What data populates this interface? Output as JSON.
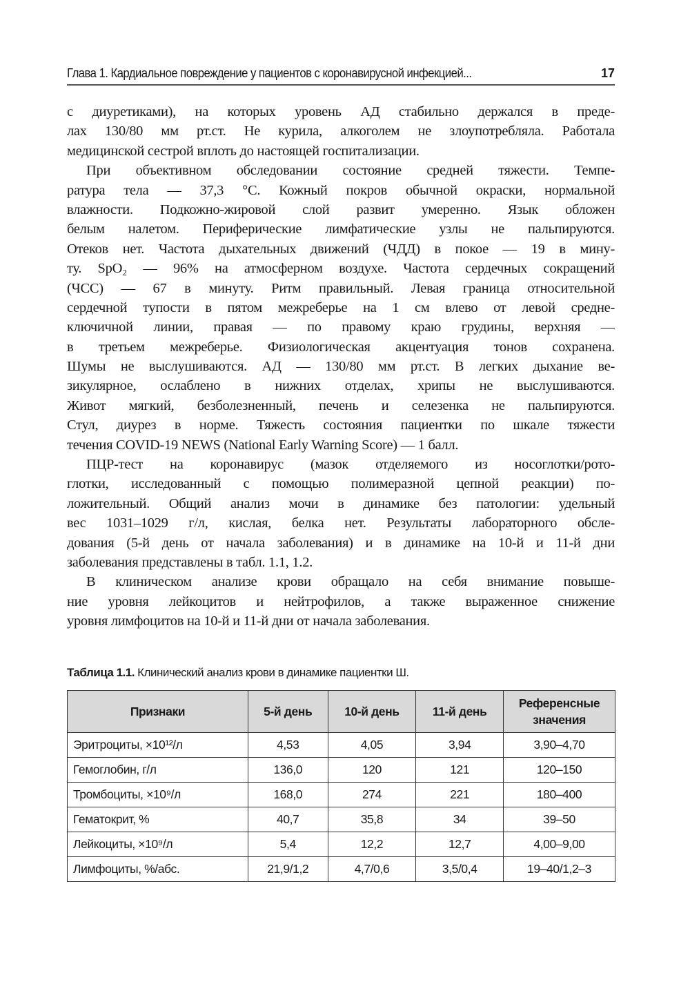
{
  "header": {
    "title": "Глава 1. Кардиальное повреждение у пациентов с коронавирусной инфекцией...",
    "page_number": "17"
  },
  "paragraphs": [
    {
      "indent": false,
      "lines": [
        "с диуретиками), на которых уровень АД стабильно держался в преде-",
        "лах 130/80 мм рт.ст. Не курила, алкоголем не злоупотребляла. Работала",
        "медицинской сестрой вплоть до настоящей госпитализации."
      ]
    },
    {
      "indent": true,
      "lines": [
        "При объективном обследовании состояние средней тяжести. Темпе-",
        "ратура тела — 37,3 °С. Кожный покров обычной окраски, нормальной",
        "влажности. Подкожно-жировой слой развит умеренно. Язык обложен",
        "белым налетом. Периферические лимфатические узлы не пальпируются.",
        "Отеков нет. Частота дыхательных движений (ЧДД) в покое — 19 в мину-",
        "ту. SpO₂ — 96% на атмосферном воздухе. Частота сердечных сокращений",
        "(ЧСС) — 67 в минуту. Ритм правильный. Левая граница относительной",
        "сердечной тупости в пятом межреберье на 1 см влево от левой средне-",
        "ключичной линии, правая — по правому краю грудины, верхняя —",
        "в третьем межреберье. Физиологическая акцентуация тонов сохранена.",
        "Шумы не выслушиваются. АД — 130/80 мм рт.ст. В легких дыхание ве-",
        "зикулярное, ослаблено в нижних отделах, хрипы не выслушиваются.",
        "Живот мягкий, безболезненный, печень и селезенка не пальпируются.",
        "Стул, диурез в норме. Тяжесть состояния пациентки по шкале тяжести",
        "течения COVID-19 NEWS (National Early Warning Score) — 1 балл."
      ]
    },
    {
      "indent": true,
      "lines": [
        "ПЦР-тест на коронавирус (мазок отделяемого из носоглотки/рото-",
        "глотки, исследованный с помощью полимеразной цепной реакции) по-",
        "ложительный. Общий анализ мочи в динамике без патологии: удельный",
        "вес 1031–1029 г/л, кислая, белка нет. Результаты лабораторного обсле-",
        "дования (5-й день от начала заболевания) и в динамике на 10-й и 11-й дни",
        "заболевания представлены в табл. 1.1, 1.2."
      ]
    },
    {
      "indent": true,
      "lines": [
        "В клиническом анализе крови обращало на себя внимание повыше-",
        "ние уровня лейкоцитов и нейтрофилов, а также выраженное снижение",
        "уровня лимфоцитов на 10-й и 11-й дни от начала заболевания."
      ]
    }
  ],
  "table": {
    "caption_label": "Таблица 1.1.",
    "caption_text": " Клинический анализ крови в динамике пациентки Ш.",
    "headers": [
      "Признаки",
      "5-й день",
      "10-й день",
      "11-й день",
      "Референсные значения"
    ],
    "rows": [
      [
        "Эритроциты, ×10¹²/л",
        "4,53",
        "4,05",
        "3,94",
        "3,90–4,70"
      ],
      [
        "Гемоглобин, г/л",
        "136,0",
        "120",
        "121",
        "120–150"
      ],
      [
        "Тромбоциты, ×10⁹/л",
        "168,0",
        "274",
        "221",
        "180–400"
      ],
      [
        "Гематокрит, %",
        "40,7",
        "35,8",
        "34",
        "39–50"
      ],
      [
        "Лейкоциты, ×10⁹/л",
        "5,4",
        "12,2",
        "12,7",
        "4,00–9,00"
      ],
      [
        "Лимфоциты, %/абс.",
        "21,9/1,2",
        "4,7/0,6",
        "3,5/0,4",
        "19–40/1,2–3"
      ]
    ]
  }
}
